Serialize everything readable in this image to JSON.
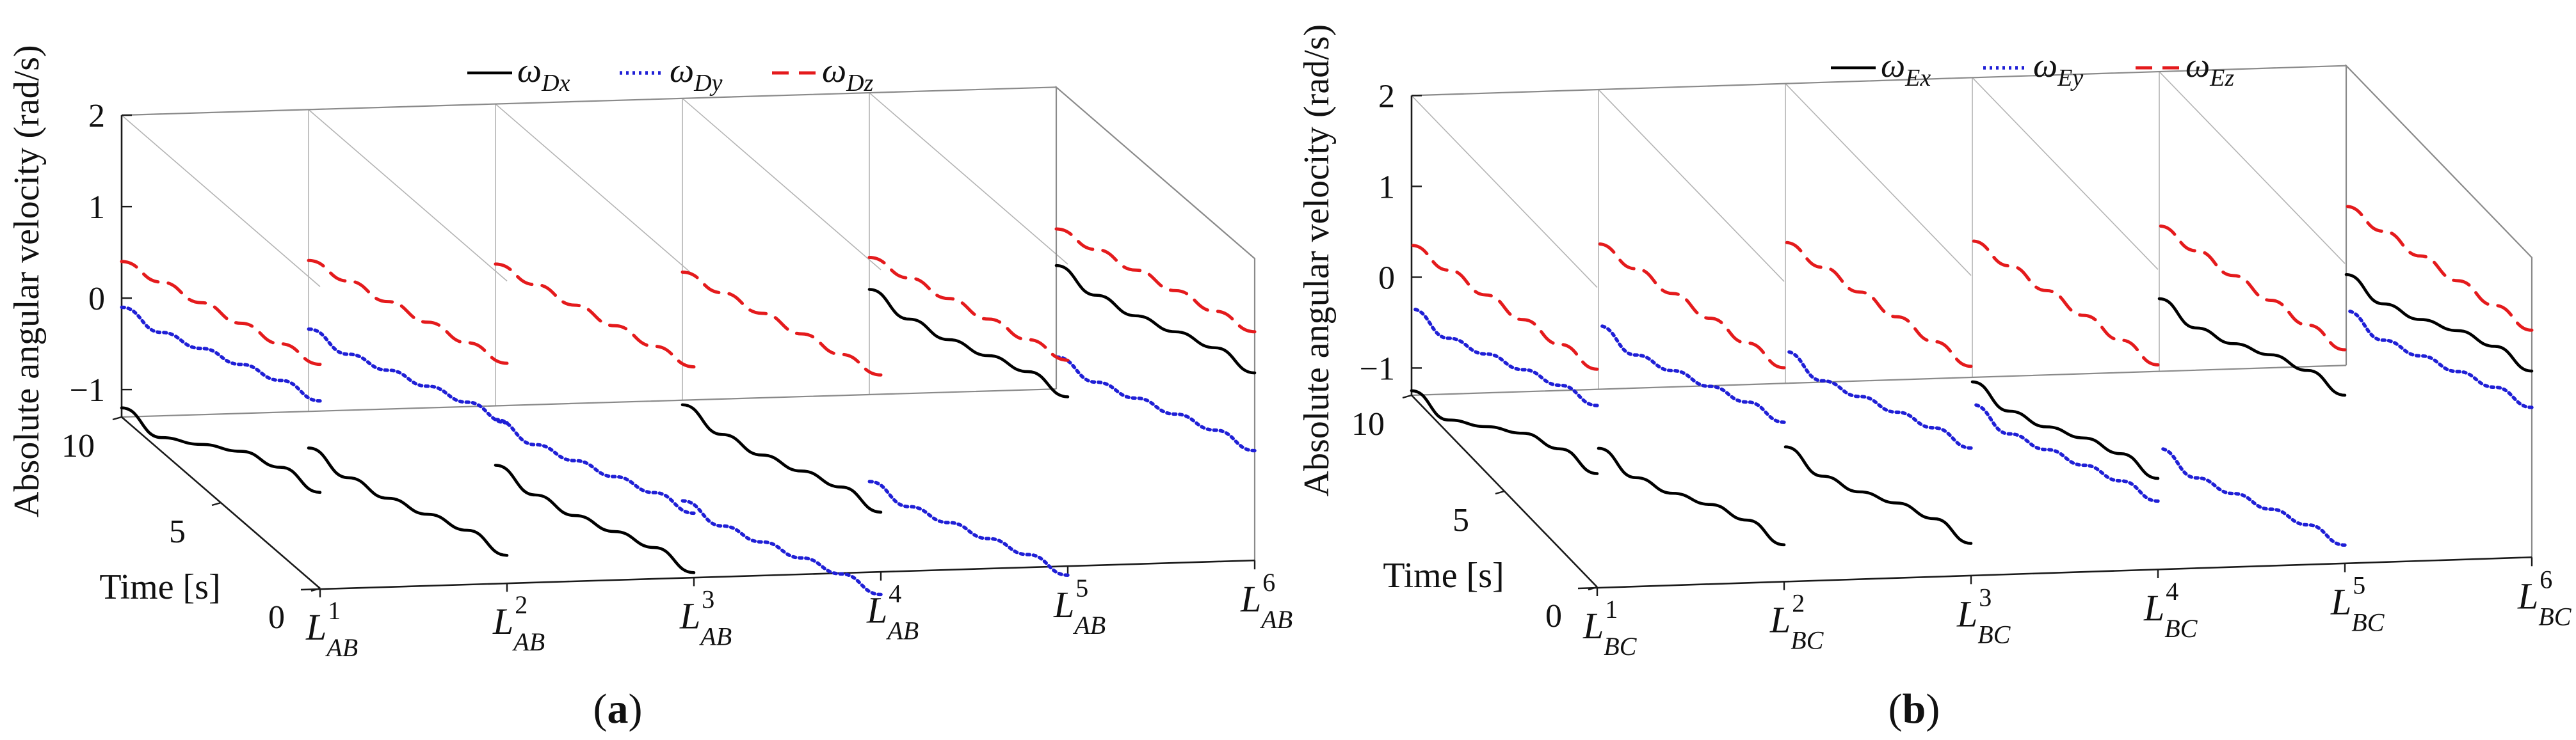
{
  "chart_data": [
    {
      "type": "line",
      "panel_label": "a",
      "zlabel": "Absolute angular velocity (rad/s)",
      "ylabel": "Time [s]",
      "x_categories": [
        {
          "base": "L",
          "sup": "1",
          "sub": "AB"
        },
        {
          "base": "L",
          "sup": "2",
          "sub": "AB"
        },
        {
          "base": "L",
          "sup": "3",
          "sub": "AB"
        },
        {
          "base": "L",
          "sup": "4",
          "sub": "AB"
        },
        {
          "base": "L",
          "sup": "5",
          "sub": "AB"
        },
        {
          "base": "L",
          "sup": "6",
          "sub": "AB"
        }
      ],
      "time_ticks": [
        "0",
        "5",
        "10"
      ],
      "z_ticks": [
        "−1",
        "0",
        "1",
        "2"
      ],
      "zlim": [
        -1.3,
        2
      ],
      "ylim": [
        0,
        10
      ],
      "legend": [
        {
          "base": "ω",
          "sub": "Dx",
          "style": "solid",
          "color": "#000000"
        },
        {
          "base": "ω",
          "sub": "Dy",
          "style": "dotted",
          "color": "#1f1fd6"
        },
        {
          "base": "ω",
          "sub": "Dz",
          "style": "dashed",
          "color": "#e41a1c"
        }
      ],
      "series": [
        {
          "component": "x",
          "curves": [
            {
              "t": [
                0,
                2,
                4,
                6,
                8,
                10
              ],
              "w": [
                -0.25,
                -0.35,
                -0.55,
                -0.85,
                -1.15,
                -1.2
              ]
            },
            {
              "t": [
                0,
                2,
                4,
                6,
                8,
                10
              ],
              "w": [
                -1.0,
                -1.1,
                -1.3,
                -1.5,
                -1.65,
                -1.7
              ]
            },
            {
              "t": [
                0,
                2,
                4,
                6,
                8,
                10
              ],
              "w": [
                -1.25,
                -1.35,
                -1.55,
                -1.75,
                -1.9,
                -1.95
              ]
            },
            {
              "t": [
                0,
                2,
                4,
                6,
                8,
                10
              ],
              "w": [
                -0.65,
                -0.75,
                -0.95,
                -1.15,
                -1.3,
                -1.35
              ]
            },
            {
              "t": [
                0,
                2,
                4,
                6,
                8,
                10
              ],
              "w": [
                0.55,
                0.45,
                0.25,
                0.05,
                -0.1,
                -0.15
              ]
            },
            {
              "t": [
                0,
                2,
                4,
                6,
                8,
                10
              ],
              "w": [
                0.75,
                0.65,
                0.45,
                0.25,
                0.1,
                0.05
              ]
            }
          ]
        },
        {
          "component": "y",
          "curves": [
            {
              "t": [
                0,
                2,
                4,
                6,
                8,
                10
              ],
              "w": [
                0.75,
                0.6,
                0.4,
                0.2,
                0.0,
                -0.1
              ]
            },
            {
              "t": [
                0,
                2,
                4,
                6,
                8,
                10
              ],
              "w": [
                0.45,
                0.3,
                0.1,
                -0.1,
                -0.3,
                -0.4
              ]
            },
            {
              "t": [
                0,
                2,
                4,
                6,
                8,
                10
              ],
              "w": [
                -0.6,
                -0.75,
                -0.95,
                -1.15,
                -1.35,
                -1.45
              ]
            },
            {
              "t": [
                0,
                2,
                4,
                6,
                8,
                10
              ],
              "w": [
                -1.55,
                -1.7,
                -1.9,
                -2.1,
                -2.3,
                -2.4
              ]
            },
            {
              "t": [
                0,
                2,
                4,
                6,
                8,
                10
              ],
              "w": [
                -1.4,
                -1.55,
                -1.75,
                -1.95,
                -2.15,
                -2.25
              ]
            },
            {
              "t": [
                0,
                2,
                4,
                6,
                8,
                10
              ],
              "w": [
                -0.1,
                -0.25,
                -0.45,
                -0.65,
                -0.85,
                -0.95
              ]
            }
          ]
        },
        {
          "component": "z",
          "curves": [
            {
              "t": [
                0,
                2,
                4,
                6,
                8,
                10
              ],
              "w": [
                1.15,
                1.0,
                0.85,
                0.7,
                0.55,
                0.4
              ]
            },
            {
              "t": [
                0,
                2,
                4,
                6,
                8,
                10
              ],
              "w": [
                1.1,
                0.95,
                0.8,
                0.65,
                0.5,
                0.35
              ]
            },
            {
              "t": [
                0,
                2,
                4,
                6,
                8,
                10
              ],
              "w": [
                1.0,
                0.85,
                0.7,
                0.55,
                0.4,
                0.25
              ]
            },
            {
              "t": [
                0,
                2,
                4,
                6,
                8,
                10
              ],
              "w": [
                0.85,
                0.7,
                0.55,
                0.4,
                0.25,
                0.1
              ]
            },
            {
              "t": [
                0,
                2,
                4,
                6,
                8,
                10
              ],
              "w": [
                0.95,
                0.8,
                0.65,
                0.5,
                0.35,
                0.2
              ]
            },
            {
              "t": [
                0,
                2,
                4,
                6,
                8,
                10
              ],
              "w": [
                1.2,
                1.05,
                0.9,
                0.75,
                0.6,
                0.45
              ]
            }
          ]
        }
      ]
    },
    {
      "type": "line",
      "panel_label": "b",
      "zlabel": "Absolute angular velocity (rad/s)",
      "ylabel": "Time [s]",
      "x_categories": [
        {
          "base": "L",
          "sup": "1",
          "sub": "BC"
        },
        {
          "base": "L",
          "sup": "2",
          "sub": "BC"
        },
        {
          "base": "L",
          "sup": "3",
          "sub": "BC"
        },
        {
          "base": "L",
          "sup": "4",
          "sub": "BC"
        },
        {
          "base": "L",
          "sup": "5",
          "sub": "BC"
        },
        {
          "base": "L",
          "sup": "6",
          "sub": "BC"
        }
      ],
      "time_ticks": [
        "0",
        "5",
        "10"
      ],
      "z_ticks": [
        "−1",
        "0",
        "1",
        "2"
      ],
      "zlim": [
        -1.3,
        2
      ],
      "ylim": [
        0,
        10
      ],
      "legend": [
        {
          "base": "ω",
          "sub": "Ex",
          "style": "solid",
          "color": "#000000"
        },
        {
          "base": "ω",
          "sub": "Ey",
          "style": "dotted",
          "color": "#1f1fd6"
        },
        {
          "base": "ω",
          "sub": "Ez",
          "style": "dashed",
          "color": "#e41a1c"
        }
      ],
      "series": [
        {
          "component": "x",
          "curves": [
            {
              "t": [
                0,
                2,
                4,
                6,
                8,
                10
              ],
              "w": [
                -0.05,
                -0.2,
                -0.45,
                -0.8,
                -1.15,
                -1.25
              ]
            },
            {
              "t": [
                0,
                2,
                4,
                6,
                8,
                10
              ],
              "w": [
                -0.9,
                -1.05,
                -1.3,
                -1.6,
                -1.85,
                -1.95
              ]
            },
            {
              "t": [
                0,
                2,
                4,
                6,
                8,
                10
              ],
              "w": [
                -0.95,
                -1.1,
                -1.35,
                -1.65,
                -1.9,
                -2.0
              ]
            },
            {
              "t": [
                0,
                2,
                4,
                6,
                8,
                10
              ],
              "w": [
                -0.3,
                -0.45,
                -0.7,
                -1.0,
                -1.25,
                -1.35
              ]
            },
            {
              "t": [
                0,
                2,
                4,
                6,
                8,
                10
              ],
              "w": [
                0.55,
                0.4,
                0.15,
                -0.15,
                -0.4,
                -0.5
              ]
            },
            {
              "t": [
                0,
                2,
                4,
                6,
                8,
                10
              ],
              "w": [
                0.75,
                0.6,
                0.35,
                0.05,
                -0.2,
                -0.3
              ]
            }
          ]
        },
        {
          "component": "y",
          "curves": [
            {
              "t": [
                0,
                2,
                4,
                6,
                8,
                10
              ],
              "w": [
                0.7,
                0.5,
                0.25,
                0.0,
                -0.25,
                -0.35
              ]
            },
            {
              "t": [
                0,
                2,
                4,
                6,
                8,
                10
              ],
              "w": [
                0.45,
                0.25,
                0.0,
                -0.25,
                -0.5,
                -0.6
              ]
            },
            {
              "t": [
                0,
                2,
                4,
                6,
                8,
                10
              ],
              "w": [
                0.1,
                -0.1,
                -0.35,
                -0.6,
                -0.85,
                -0.95
              ]
            },
            {
              "t": [
                0,
                2,
                4,
                6,
                8,
                10
              ],
              "w": [
                -0.55,
                -0.75,
                -1.0,
                -1.25,
                -1.5,
                -1.6
              ]
            },
            {
              "t": [
                0,
                2,
                4,
                6,
                8,
                10
              ],
              "w": [
                -1.1,
                -1.3,
                -1.55,
                -1.8,
                -2.05,
                -2.15
              ]
            },
            {
              "t": [
                0,
                2,
                4,
                6,
                8,
                10
              ],
              "w": [
                0.35,
                0.15,
                -0.1,
                -0.35,
                -0.6,
                -0.7
              ]
            }
          ]
        },
        {
          "component": "z",
          "curves": [
            {
              "t": [
                0,
                2,
                4,
                6,
                8,
                10
              ],
              "w": [
                1.1,
                0.95,
                0.8,
                0.65,
                0.5,
                0.35
              ]
            },
            {
              "t": [
                0,
                2,
                4,
                6,
                8,
                10
              ],
              "w": [
                1.05,
                0.9,
                0.75,
                0.6,
                0.45,
                0.3
              ]
            },
            {
              "t": [
                0,
                2,
                4,
                6,
                8,
                10
              ],
              "w": [
                1.0,
                0.85,
                0.7,
                0.55,
                0.4,
                0.25
              ]
            },
            {
              "t": [
                0,
                2,
                4,
                6,
                8,
                10
              ],
              "w": [
                0.95,
                0.8,
                0.65,
                0.5,
                0.35,
                0.2
              ]
            },
            {
              "t": [
                0,
                2,
                4,
                6,
                8,
                10
              ],
              "w": [
                1.05,
                0.9,
                0.75,
                0.6,
                0.45,
                0.3
              ]
            },
            {
              "t": [
                0,
                2,
                4,
                6,
                8,
                10
              ],
              "w": [
                1.2,
                1.05,
                0.9,
                0.75,
                0.6,
                0.45
              ]
            }
          ]
        }
      ]
    }
  ]
}
